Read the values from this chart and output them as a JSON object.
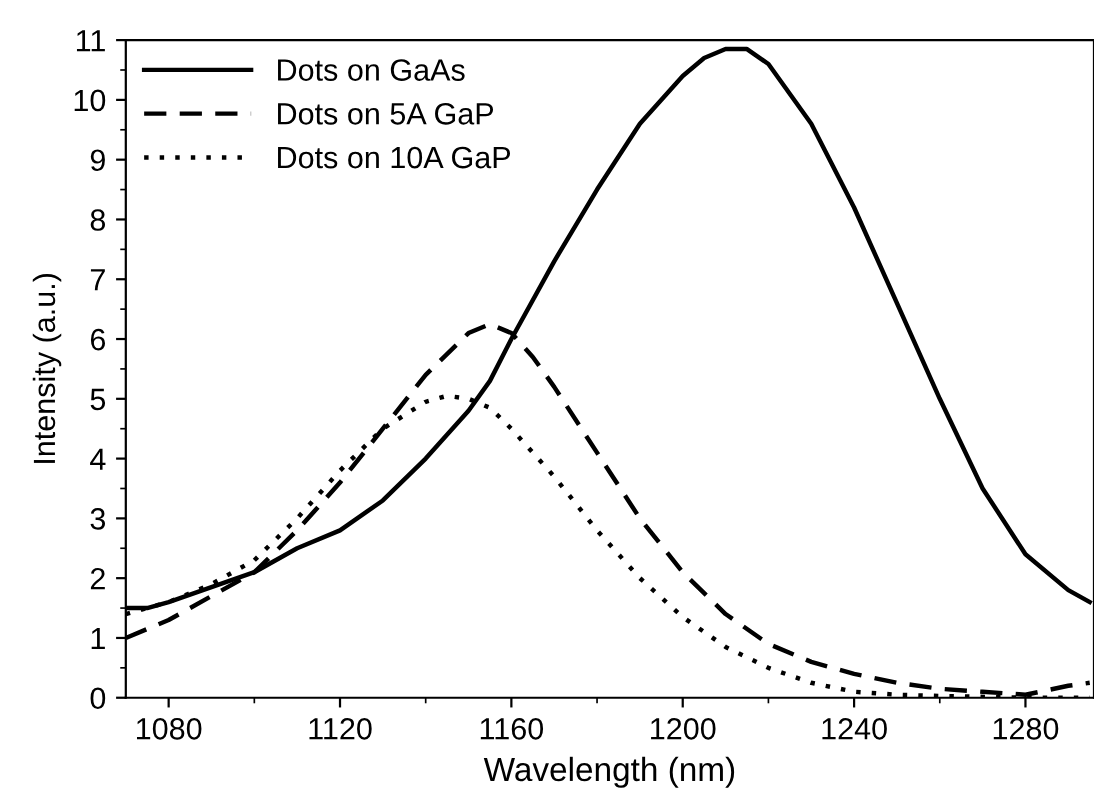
{
  "chart_data": {
    "type": "line",
    "xlabel": "Wavelength (nm)",
    "ylabel": "Intensity (a.u.)",
    "xlim": [
      1070,
      1296
    ],
    "xticks": [
      1080,
      1120,
      1160,
      1200,
      1240,
      1280
    ],
    "ylim": [
      0,
      11
    ],
    "yticks": [
      0,
      1,
      2,
      3,
      4,
      5,
      6,
      7,
      8,
      9,
      10,
      11
    ],
    "grid": false,
    "legend": "top left",
    "series": [
      {
        "name": "Dots on GaAs",
        "color": "#000000",
        "line_style": "solid",
        "x": [
          1070,
          1075,
          1080,
          1090,
          1100,
          1110,
          1120,
          1130,
          1140,
          1150,
          1155,
          1160,
          1170,
          1180,
          1190,
          1200,
          1205,
          1210,
          1215,
          1220,
          1230,
          1240,
          1250,
          1260,
          1270,
          1280,
          1290,
          1295
        ],
        "values": [
          1.5,
          1.5,
          1.6,
          1.85,
          2.1,
          2.5,
          2.8,
          3.3,
          4.0,
          4.8,
          5.3,
          6.0,
          7.3,
          8.5,
          9.6,
          10.4,
          10.7,
          10.85,
          10.85,
          10.6,
          9.6,
          8.2,
          6.6,
          5.0,
          3.5,
          2.4,
          1.8,
          1.6
        ]
      },
      {
        "name": "Dots on 5A GaP",
        "color": "#000000",
        "line_style": "dashed",
        "x": [
          1070,
          1080,
          1090,
          1100,
          1110,
          1120,
          1130,
          1140,
          1150,
          1155,
          1160,
          1165,
          1170,
          1180,
          1190,
          1200,
          1210,
          1220,
          1230,
          1240,
          1250,
          1260,
          1270,
          1280,
          1290,
          1295
        ],
        "values": [
          1.0,
          1.3,
          1.7,
          2.1,
          2.8,
          3.6,
          4.5,
          5.4,
          6.1,
          6.25,
          6.1,
          5.7,
          5.2,
          4.1,
          3.0,
          2.1,
          1.4,
          0.9,
          0.6,
          0.4,
          0.25,
          0.15,
          0.1,
          0.05,
          0.2,
          0.25
        ]
      },
      {
        "name": "Dots on 10A GaP",
        "color": "#000000",
        "line_style": "dotted",
        "x": [
          1070,
          1080,
          1090,
          1100,
          1110,
          1120,
          1130,
          1140,
          1145,
          1150,
          1155,
          1160,
          1170,
          1180,
          1190,
          1200,
          1210,
          1220,
          1230,
          1240,
          1250,
          1260,
          1280,
          1295
        ],
        "values": [
          1.4,
          1.6,
          1.9,
          2.3,
          3.0,
          3.8,
          4.5,
          4.95,
          5.05,
          5.0,
          4.85,
          4.5,
          3.7,
          2.8,
          2.0,
          1.35,
          0.85,
          0.5,
          0.25,
          0.1,
          0.05,
          0.03,
          0.0,
          0.0
        ]
      }
    ]
  }
}
